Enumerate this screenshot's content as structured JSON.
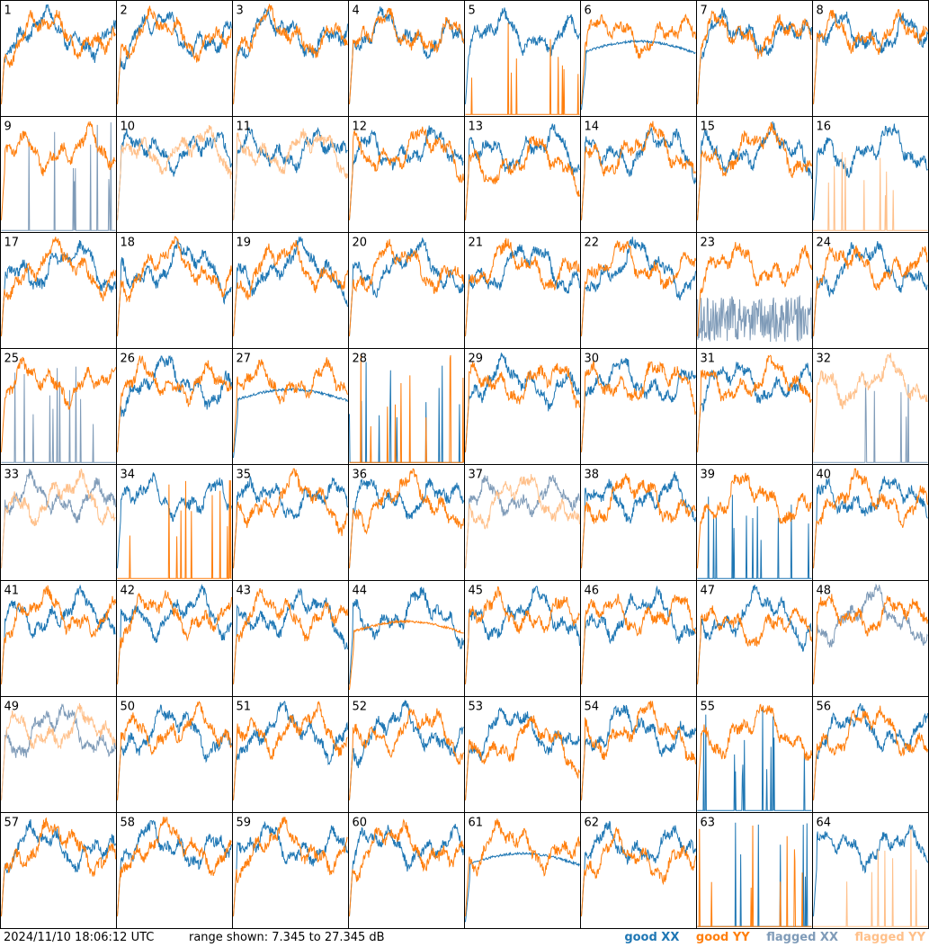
{
  "footer": {
    "timestamp": "2024/11/10 18:06:12 UTC",
    "range_text": "range shown: 7.345 to 27.345 dB"
  },
  "legend": {
    "good_xx": "good XX",
    "good_yy": "good YY",
    "flagged_xx": "flagged XX",
    "flagged_yy": "flagged YY"
  },
  "colors": {
    "good_xx": "#1f77b4",
    "good_yy": "#ff7f0e",
    "flagged_xx": "#7f9bb8",
    "flagged_yy": "#ffc08a",
    "grid": "#000000"
  },
  "chart_data": {
    "type": "line",
    "ylim": [
      7.345,
      27.345
    ],
    "yunit": "dB",
    "grid_rows": 8,
    "grid_cols": 8,
    "panels": [
      {
        "id": "1",
        "xx": "good",
        "yy": "good",
        "xx_pattern": "normal",
        "yy_pattern": "normal"
      },
      {
        "id": "2",
        "xx": "good",
        "yy": "good",
        "xx_pattern": "normal",
        "yy_pattern": "normal"
      },
      {
        "id": "3",
        "xx": "good",
        "yy": "good",
        "xx_pattern": "normal",
        "yy_pattern": "normal"
      },
      {
        "id": "4",
        "xx": "good",
        "yy": "good",
        "xx_pattern": "normal",
        "yy_pattern": "normal"
      },
      {
        "id": "5",
        "xx": "good",
        "yy": "good",
        "xx_pattern": "normal",
        "yy_pattern": "spiky"
      },
      {
        "id": "6",
        "xx": "good",
        "yy": "good",
        "xx_pattern": "smooth",
        "yy_pattern": "normal"
      },
      {
        "id": "7",
        "xx": "good",
        "yy": "good",
        "xx_pattern": "normal",
        "yy_pattern": "normal"
      },
      {
        "id": "8",
        "xx": "good",
        "yy": "good",
        "xx_pattern": "normal",
        "yy_pattern": "normal"
      },
      {
        "id": "9",
        "xx": "flagged",
        "yy": "good",
        "xx_pattern": "spiky",
        "yy_pattern": "normal"
      },
      {
        "id": "10",
        "xx": "good",
        "yy": "flagged",
        "xx_pattern": "normal",
        "yy_pattern": "normal"
      },
      {
        "id": "11",
        "xx": "good",
        "yy": "flagged",
        "xx_pattern": "normal",
        "yy_pattern": "normal"
      },
      {
        "id": "12",
        "xx": "good",
        "yy": "good",
        "xx_pattern": "normal",
        "yy_pattern": "normal"
      },
      {
        "id": "13",
        "xx": "good",
        "yy": "good",
        "xx_pattern": "normal",
        "yy_pattern": "low"
      },
      {
        "id": "14",
        "xx": "good",
        "yy": "good",
        "xx_pattern": "normal",
        "yy_pattern": "normal"
      },
      {
        "id": "15",
        "xx": "good",
        "yy": "good",
        "xx_pattern": "normal",
        "yy_pattern": "normal"
      },
      {
        "id": "16",
        "xx": "good",
        "yy": "flagged",
        "xx_pattern": "normal",
        "yy_pattern": "spiky"
      },
      {
        "id": "17",
        "xx": "good",
        "yy": "good",
        "xx_pattern": "normal",
        "yy_pattern": "normal"
      },
      {
        "id": "18",
        "xx": "good",
        "yy": "good",
        "xx_pattern": "normal",
        "yy_pattern": "normal"
      },
      {
        "id": "19",
        "xx": "good",
        "yy": "good",
        "xx_pattern": "normal",
        "yy_pattern": "normal"
      },
      {
        "id": "20",
        "xx": "good",
        "yy": "good",
        "xx_pattern": "normal",
        "yy_pattern": "normal"
      },
      {
        "id": "21",
        "xx": "good",
        "yy": "good",
        "xx_pattern": "normal",
        "yy_pattern": "normal"
      },
      {
        "id": "22",
        "xx": "good",
        "yy": "good",
        "xx_pattern": "normal",
        "yy_pattern": "normal"
      },
      {
        "id": "23",
        "xx": "flagged",
        "yy": "good",
        "xx_pattern": "noisy",
        "yy_pattern": "normal"
      },
      {
        "id": "24",
        "xx": "good",
        "yy": "good",
        "xx_pattern": "normal",
        "yy_pattern": "normal"
      },
      {
        "id": "25",
        "xx": "flagged",
        "yy": "good",
        "xx_pattern": "spiky",
        "yy_pattern": "normal"
      },
      {
        "id": "26",
        "xx": "good",
        "yy": "good",
        "xx_pattern": "normal",
        "yy_pattern": "normal"
      },
      {
        "id": "27",
        "xx": "good",
        "yy": "good",
        "xx_pattern": "smooth",
        "yy_pattern": "normal"
      },
      {
        "id": "28",
        "xx": "good",
        "yy": "good",
        "xx_pattern": "spiky",
        "yy_pattern": "spiky"
      },
      {
        "id": "29",
        "xx": "good",
        "yy": "good",
        "xx_pattern": "normal",
        "yy_pattern": "normal"
      },
      {
        "id": "30",
        "xx": "good",
        "yy": "good",
        "xx_pattern": "normal",
        "yy_pattern": "normal"
      },
      {
        "id": "31",
        "xx": "good",
        "yy": "good",
        "xx_pattern": "normal",
        "yy_pattern": "normal"
      },
      {
        "id": "32",
        "xx": "flagged",
        "yy": "flagged",
        "xx_pattern": "spiky",
        "yy_pattern": "normal"
      },
      {
        "id": "33",
        "xx": "flagged",
        "yy": "flagged",
        "xx_pattern": "normal",
        "yy_pattern": "normal"
      },
      {
        "id": "34",
        "xx": "good",
        "yy": "good",
        "xx_pattern": "normal",
        "yy_pattern": "spiky"
      },
      {
        "id": "35",
        "xx": "good",
        "yy": "good",
        "xx_pattern": "normal",
        "yy_pattern": "normal"
      },
      {
        "id": "36",
        "xx": "good",
        "yy": "good",
        "xx_pattern": "normal",
        "yy_pattern": "normal"
      },
      {
        "id": "37",
        "xx": "flagged",
        "yy": "flagged",
        "xx_pattern": "normal",
        "yy_pattern": "normal"
      },
      {
        "id": "38",
        "xx": "good",
        "yy": "good",
        "xx_pattern": "normal",
        "yy_pattern": "normal"
      },
      {
        "id": "39",
        "xx": "good",
        "yy": "good",
        "xx_pattern": "spiky",
        "yy_pattern": "normal"
      },
      {
        "id": "40",
        "xx": "good",
        "yy": "good",
        "xx_pattern": "normal",
        "yy_pattern": "normal"
      },
      {
        "id": "41",
        "xx": "good",
        "yy": "good",
        "xx_pattern": "normal",
        "yy_pattern": "normal"
      },
      {
        "id": "42",
        "xx": "good",
        "yy": "good",
        "xx_pattern": "normal",
        "yy_pattern": "normal"
      },
      {
        "id": "43",
        "xx": "good",
        "yy": "good",
        "xx_pattern": "normal",
        "yy_pattern": "normal"
      },
      {
        "id": "44",
        "xx": "good",
        "yy": "good",
        "xx_pattern": "normal",
        "yy_pattern": "smooth"
      },
      {
        "id": "45",
        "xx": "good",
        "yy": "good",
        "xx_pattern": "normal",
        "yy_pattern": "normal"
      },
      {
        "id": "46",
        "xx": "good",
        "yy": "good",
        "xx_pattern": "normal",
        "yy_pattern": "normal"
      },
      {
        "id": "47",
        "xx": "good",
        "yy": "good",
        "xx_pattern": "normal",
        "yy_pattern": "low"
      },
      {
        "id": "48",
        "xx": "flagged",
        "yy": "good",
        "xx_pattern": "normal",
        "yy_pattern": "normal"
      },
      {
        "id": "49",
        "xx": "flagged",
        "yy": "flagged",
        "xx_pattern": "normal",
        "yy_pattern": "normal"
      },
      {
        "id": "50",
        "xx": "good",
        "yy": "good",
        "xx_pattern": "normal",
        "yy_pattern": "normal"
      },
      {
        "id": "51",
        "xx": "good",
        "yy": "good",
        "xx_pattern": "normal",
        "yy_pattern": "normal"
      },
      {
        "id": "52",
        "xx": "good",
        "yy": "good",
        "xx_pattern": "normal",
        "yy_pattern": "normal"
      },
      {
        "id": "53",
        "xx": "good",
        "yy": "good",
        "xx_pattern": "normal",
        "yy_pattern": "low"
      },
      {
        "id": "54",
        "xx": "good",
        "yy": "good",
        "xx_pattern": "normal",
        "yy_pattern": "normal"
      },
      {
        "id": "55",
        "xx": "good",
        "yy": "good",
        "xx_pattern": "spiky",
        "yy_pattern": "normal"
      },
      {
        "id": "56",
        "xx": "good",
        "yy": "good",
        "xx_pattern": "normal",
        "yy_pattern": "normal"
      },
      {
        "id": "57",
        "xx": "good",
        "yy": "good",
        "xx_pattern": "normal",
        "yy_pattern": "normal"
      },
      {
        "id": "58",
        "xx": "good",
        "yy": "good",
        "xx_pattern": "normal",
        "yy_pattern": "normal"
      },
      {
        "id": "59",
        "xx": "good",
        "yy": "good",
        "xx_pattern": "normal",
        "yy_pattern": "normal"
      },
      {
        "id": "60",
        "xx": "good",
        "yy": "good",
        "xx_pattern": "normal",
        "yy_pattern": "normal"
      },
      {
        "id": "61",
        "xx": "good",
        "yy": "good",
        "xx_pattern": "smooth",
        "yy_pattern": "normal"
      },
      {
        "id": "62",
        "xx": "good",
        "yy": "good",
        "xx_pattern": "normal",
        "yy_pattern": "low"
      },
      {
        "id": "63",
        "xx": "good",
        "yy": "good",
        "xx_pattern": "spiky",
        "yy_pattern": "spiky"
      },
      {
        "id": "64",
        "xx": "good",
        "yy": "flagged",
        "xx_pattern": "normal",
        "yy_pattern": "spiky"
      }
    ]
  }
}
